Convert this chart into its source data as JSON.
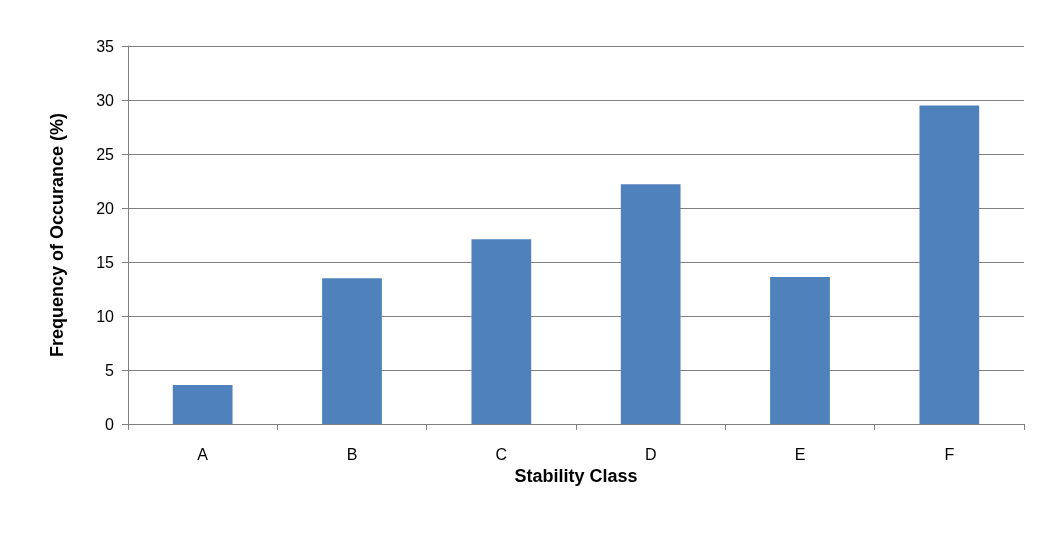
{
  "chart_data": {
    "type": "bar",
    "xlabel": "Stability Class",
    "ylabel": "Frequency of Occurance (%)",
    "categories": [
      "A",
      "B",
      "C",
      "D",
      "E",
      "F"
    ],
    "values": [
      3.6,
      13.5,
      17.1,
      22.2,
      13.6,
      29.5
    ],
    "color": "#4f81bd",
    "ylim": [
      0,
      35
    ],
    "yticks": [
      0,
      5,
      10,
      15,
      20,
      25,
      30,
      35
    ],
    "grid": "y"
  }
}
